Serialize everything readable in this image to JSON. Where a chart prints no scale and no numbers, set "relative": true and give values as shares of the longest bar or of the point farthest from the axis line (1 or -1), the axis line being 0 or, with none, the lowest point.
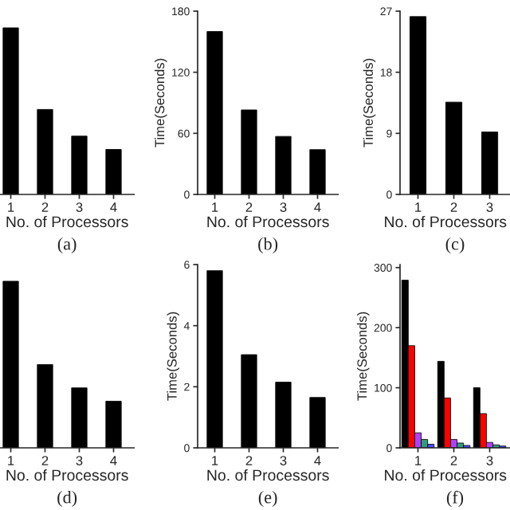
{
  "chart_data": [
    {
      "type": "bar",
      "title": "(a)",
      "xlabel": "No. of Processors",
      "relative": true,
      "tick_labels": "x",
      "categories": [
        "1",
        "2",
        "3",
        "4"
      ],
      "values": [
        1,
        0.51,
        0.35,
        0.27
      ],
      "color": "#000000"
    },
    {
      "type": "bar",
      "title": "(b)",
      "xlabel": "No. of Processors",
      "ylabel": "Time(Seconds)",
      "categories": [
        "1",
        "2",
        "3",
        "4"
      ],
      "values": [
        160,
        83,
        57,
        44
      ],
      "color": "#000000",
      "ylim": [
        0,
        180
      ],
      "yticks": [
        0,
        60,
        120,
        180
      ]
    },
    {
      "type": "bar",
      "title": "(c)",
      "xlabel": "No. of Processors",
      "ylabel": "Time(Seconds)",
      "categories": [
        "1",
        "2",
        "3"
      ],
      "values": [
        26.2,
        13.6,
        9.2
      ],
      "color": "#000000",
      "ylim": [
        0,
        27
      ],
      "yticks": [
        0,
        9,
        18,
        27
      ]
    },
    {
      "type": "bar",
      "title": "(d)",
      "xlabel": "No. of Processors",
      "relative": true,
      "tick_labels": "x",
      "categories": [
        "1",
        "2",
        "3",
        "4"
      ],
      "values": [
        1,
        0.5,
        0.36,
        0.28
      ],
      "color": "#000000"
    },
    {
      "type": "bar",
      "title": "(e)",
      "xlabel": "No. of Processors",
      "ylabel": "Time(Seconds)",
      "categories": [
        "1",
        "2",
        "3",
        "4"
      ],
      "values": [
        5.8,
        3.05,
        2.15,
        1.65
      ],
      "color": "#000000",
      "ylim": [
        0,
        6
      ],
      "yticks": [
        0,
        2,
        4,
        6
      ]
    },
    {
      "type": "bar",
      "title": "(f)",
      "xlabel": "No. of Processors",
      "ylabel": "Time(Seconds)",
      "categories": [
        "1",
        "2",
        "3"
      ],
      "ylim": [
        0,
        305
      ],
      "yticks": [
        0,
        100,
        200,
        300
      ],
      "series": [
        {
          "color": "#000000",
          "values": [
            279,
            144,
            100
          ]
        },
        {
          "color": "#ff0000",
          "values": [
            170,
            83,
            57
          ]
        },
        {
          "color": "#b040ff",
          "values": [
            25,
            14,
            9
          ]
        },
        {
          "color": "#2e9e7a",
          "values": [
            14,
            8,
            5
          ]
        },
        {
          "color": "#4a4aff",
          "values": [
            6,
            4,
            3
          ]
        }
      ]
    }
  ]
}
